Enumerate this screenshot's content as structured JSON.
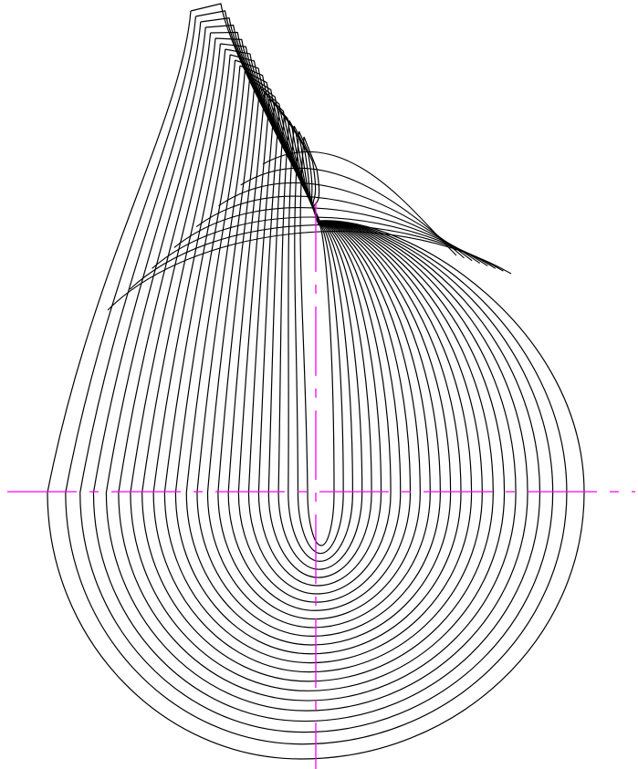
{
  "drawing": {
    "curve_family_count": 24,
    "colors": {
      "background": "#ffffff",
      "curve_stroke": "#000000",
      "axis_stroke": "#ff00ff"
    },
    "axes": {
      "horizontal_centerline": "dash-dot",
      "vertical_centerline": "dash-dot"
    }
  }
}
